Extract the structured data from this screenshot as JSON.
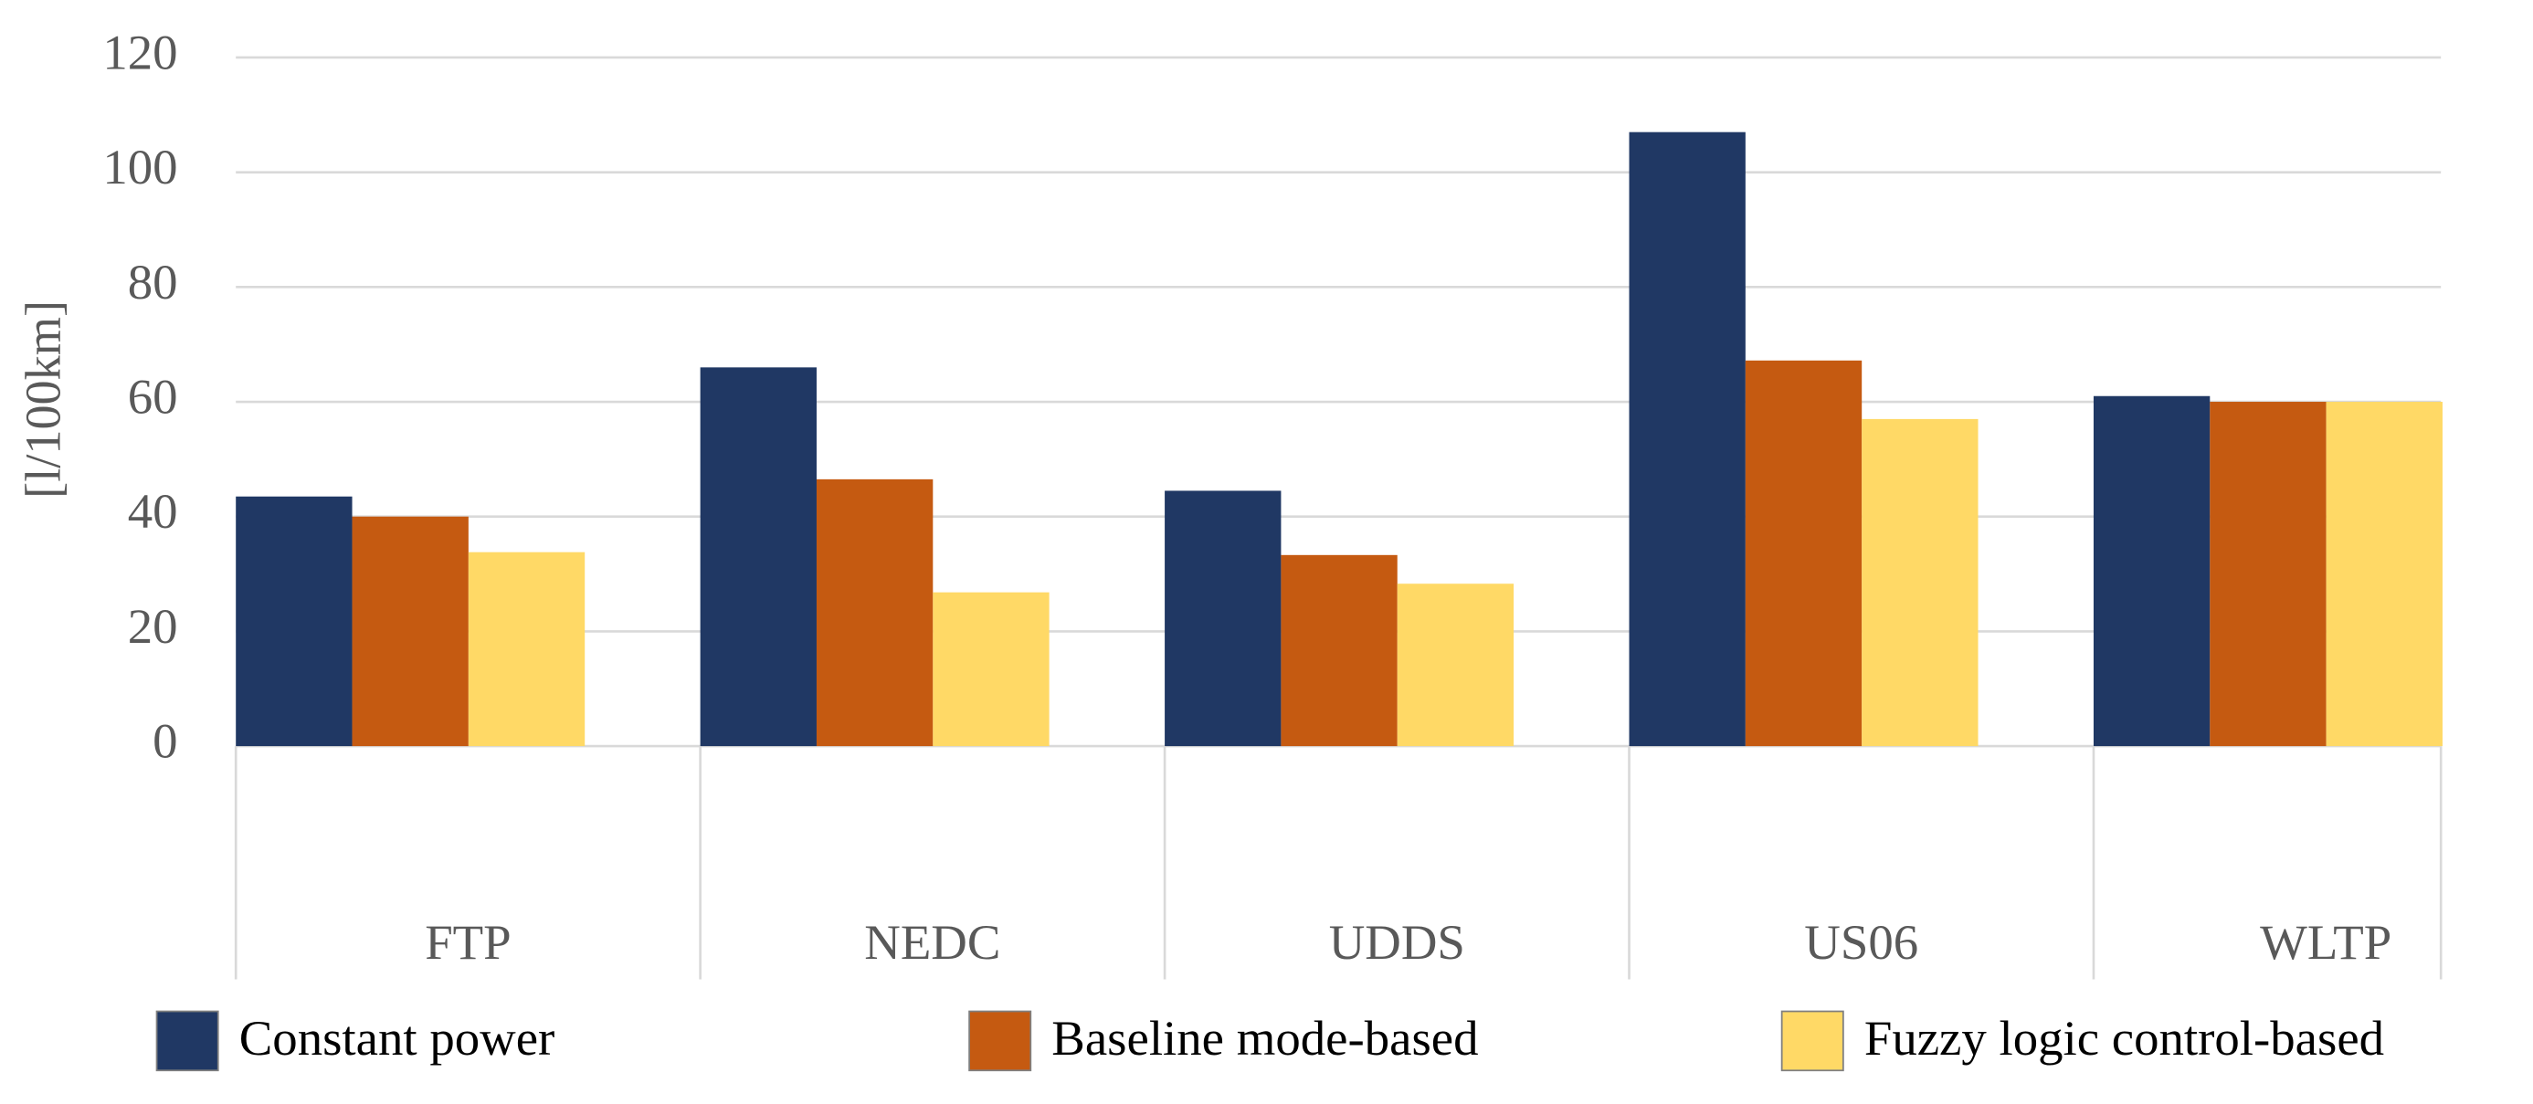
{
  "chart_data": {
    "type": "bar",
    "y_label": "[l/100km]",
    "categories": [
      "FTP",
      "NEDC",
      "UDDS",
      "US06",
      "WLTP"
    ],
    "series": [
      {
        "name": "Constant power",
        "color": "#203864",
        "values": [
          43.5,
          66,
          44.5,
          107,
          61
        ]
      },
      {
        "name": "Baseline mode-based",
        "color": "#c55a11",
        "values": [
          40,
          46.5,
          33.3,
          67.2,
          60
        ]
      },
      {
        "name": "Fuzzy logic control-based",
        "color": "#ffd966",
        "values": [
          33.8,
          26.8,
          28.3,
          57,
          60
        ]
      }
    ],
    "ylim": [
      0,
      120
    ],
    "yticks": [
      0,
      20,
      40,
      60,
      80,
      100,
      120
    ],
    "grid": true,
    "legend": "bottom"
  }
}
